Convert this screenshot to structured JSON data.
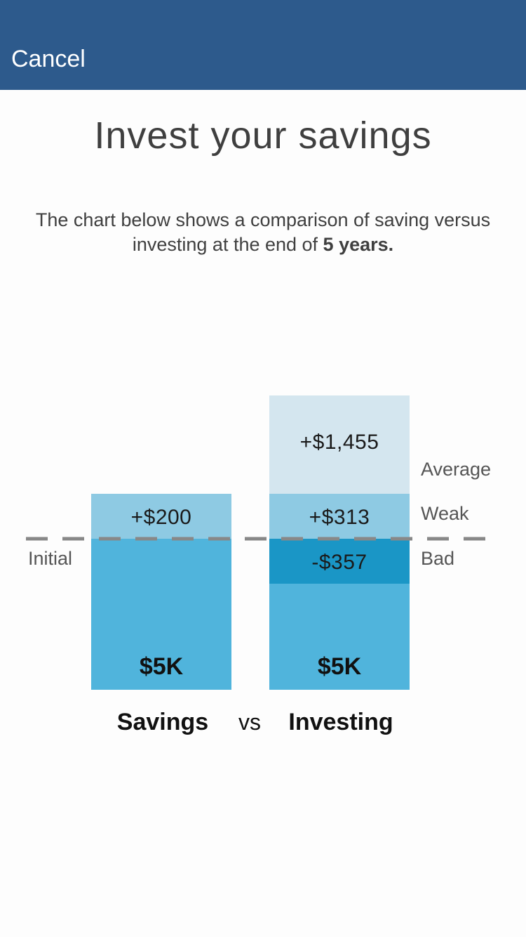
{
  "nav": {
    "cancel_label": "Cancel",
    "background_color": "#2d5a8c"
  },
  "title": "Invest your savings",
  "description": {
    "text": "The chart below shows a comparison of saving versus investing at the end of ",
    "emphasis": "5 years."
  },
  "chart_data": {
    "type": "bar",
    "categories": [
      "Savings",
      "Investing"
    ],
    "separator_label": "vs",
    "baseline": {
      "label": "Initial",
      "value": 5000,
      "display": "$5K"
    },
    "bars": [
      {
        "category": "Savings",
        "base_value": 5000,
        "base_label": "$5K",
        "segments": [
          {
            "label": "+$200",
            "value": 200,
            "color": "#8ecae3"
          }
        ]
      },
      {
        "category": "Investing",
        "base_value": 5000,
        "base_label": "$5K",
        "segments": [
          {
            "scenario": "Bad",
            "label": "-$357",
            "value": -357,
            "color": "#1a96c6"
          },
          {
            "scenario": "Weak",
            "label": "+$313",
            "value": 313,
            "color": "#8ecae3"
          },
          {
            "scenario": "Average",
            "label": "+$1,455",
            "value": 1455,
            "color": "#d4e6ef"
          }
        ]
      }
    ],
    "scenario_labels": [
      "Average",
      "Weak",
      "Bad"
    ],
    "colors": {
      "base": "#50b4dc",
      "baseline_line": "#888888"
    }
  }
}
